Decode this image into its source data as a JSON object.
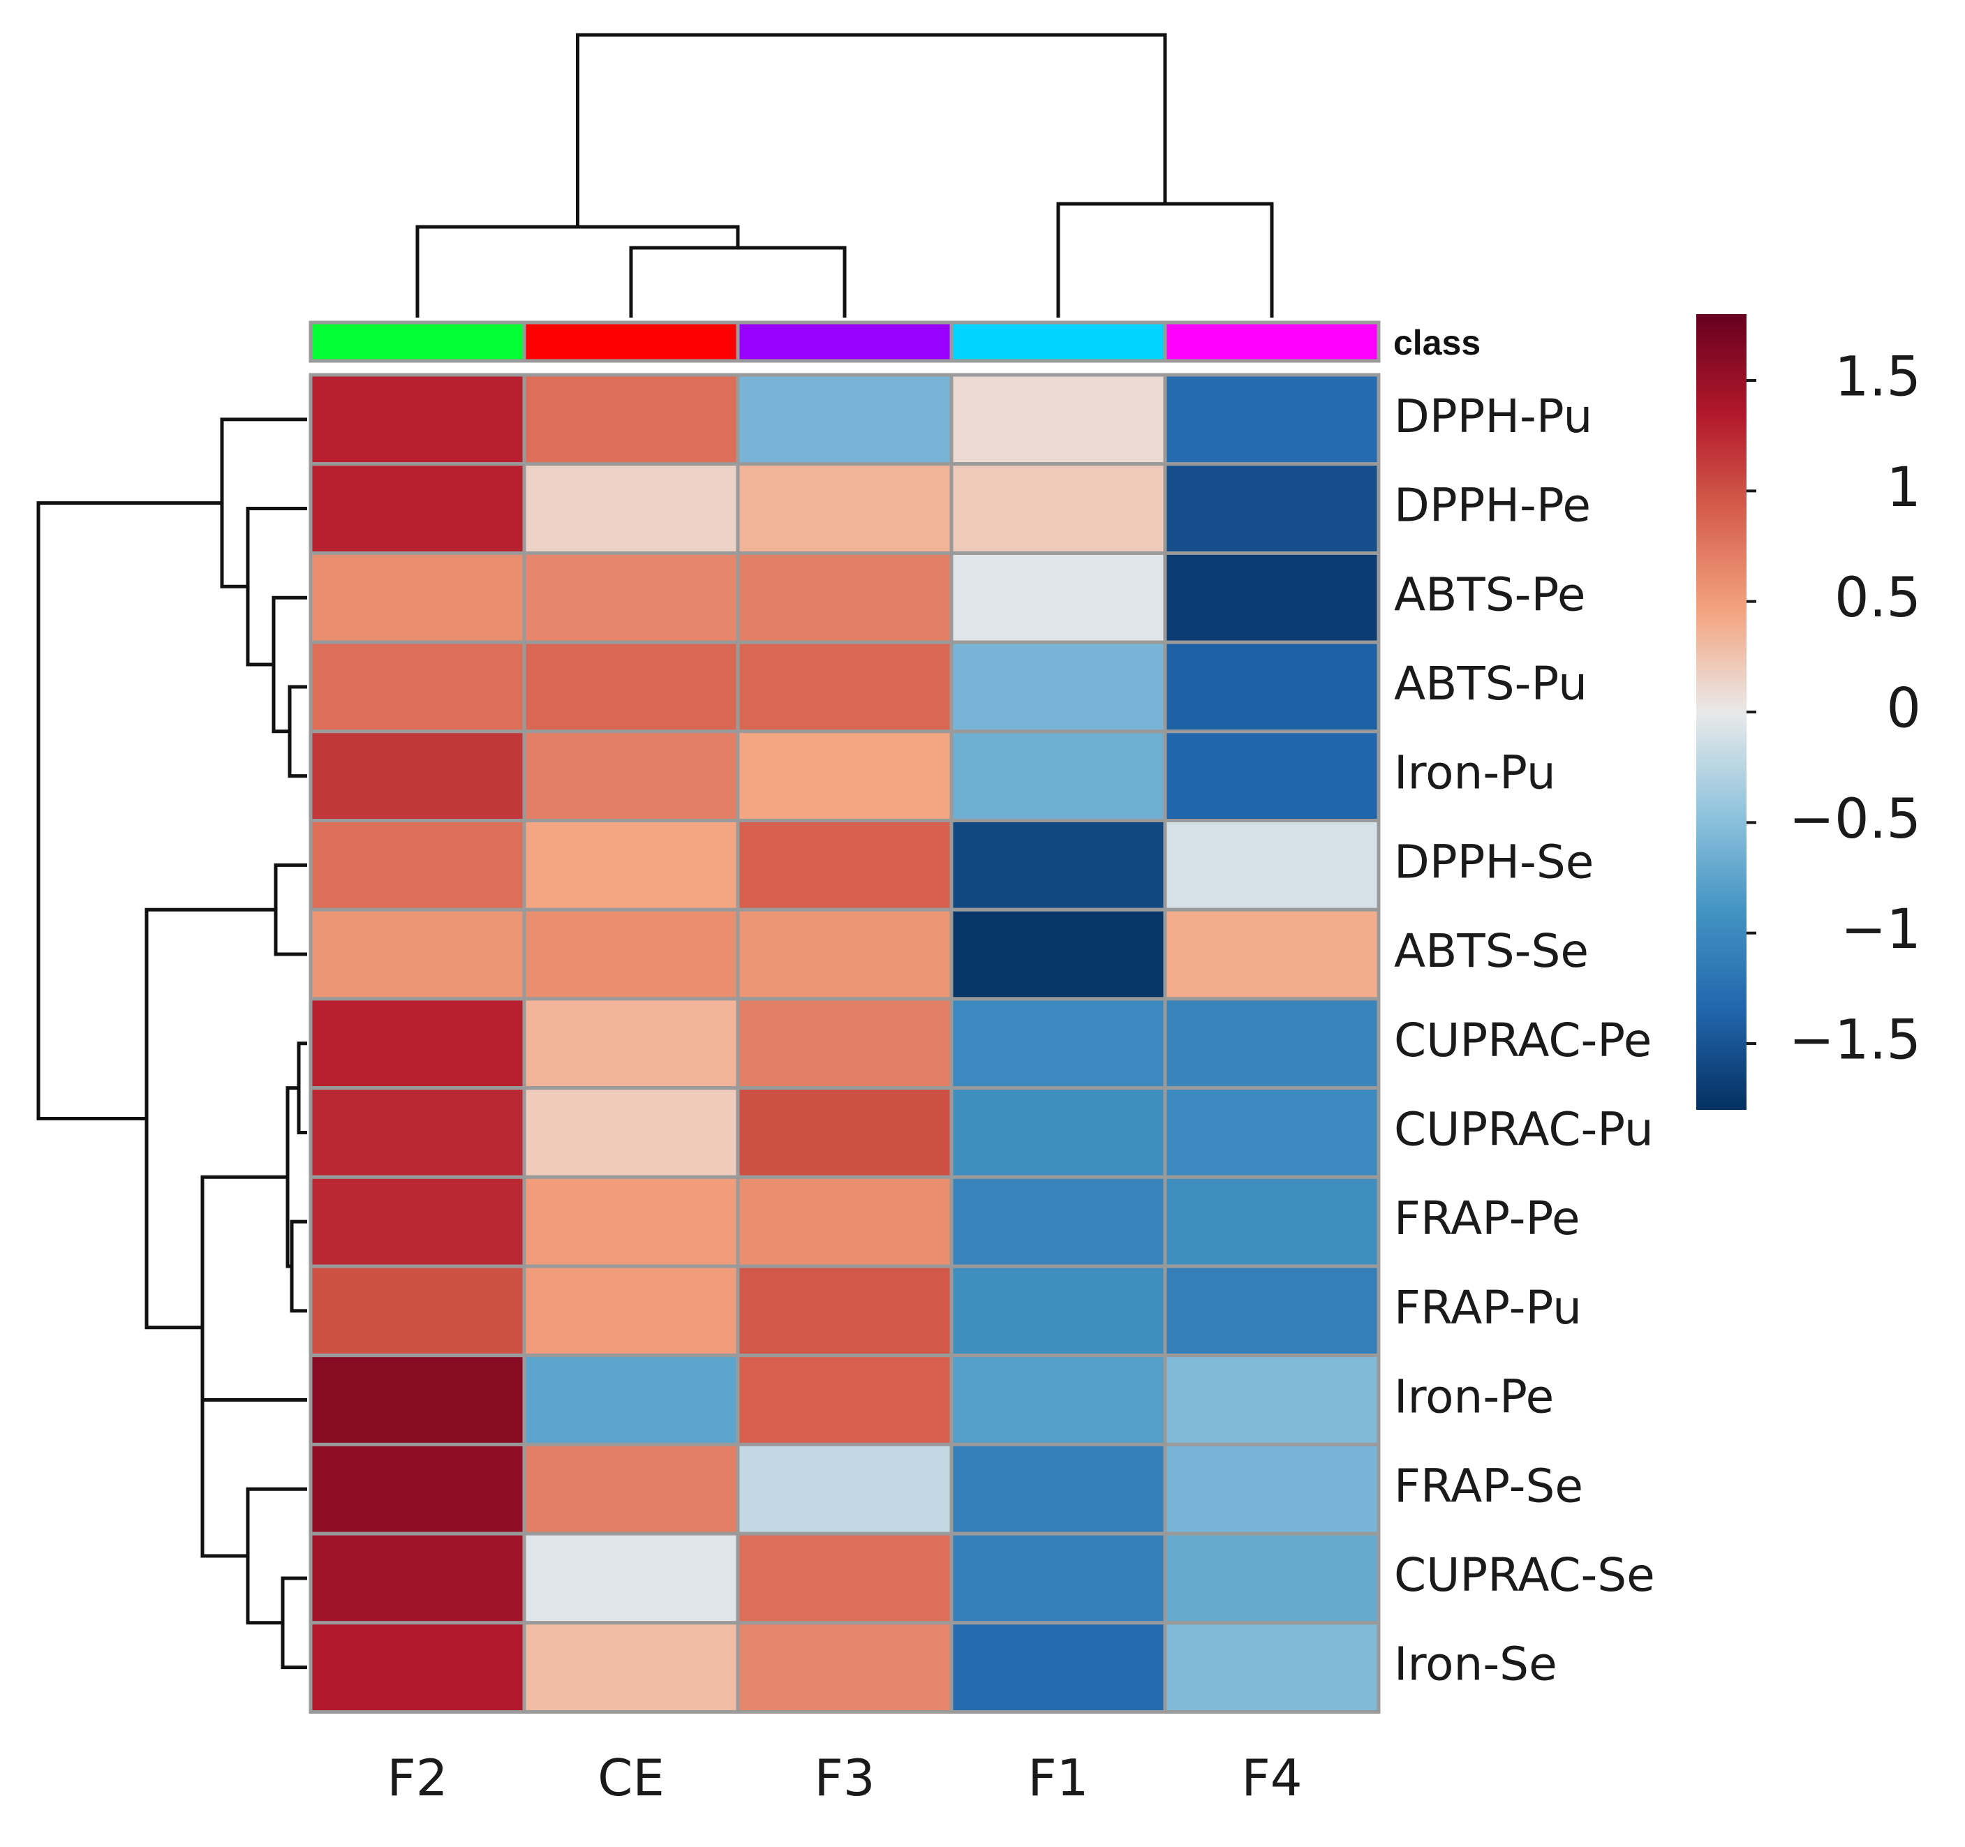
{
  "chart_data": {
    "type": "heatmap",
    "title": "",
    "columns": [
      "F2",
      "CE",
      "F3",
      "F1",
      "F4"
    ],
    "rows": [
      "DPPH-Pu",
      "DPPH-Pe",
      "ABTS-Pe",
      "ABTS-Pu",
      "Iron-Pu",
      "DPPH-Se",
      "ABTS-Se",
      "CUPRAC-Pe",
      "CUPRAC-Pu",
      "FRAP-Pe",
      "FRAP-Pu",
      "Iron-Pe",
      "FRAP-Se",
      "CUPRAC-Se",
      "Iron-Se"
    ],
    "values": [
      [
        1.3,
        0.8,
        -0.6,
        0.1,
        -1.3
      ],
      [
        1.3,
        0.15,
        0.35,
        0.2,
        -1.55
      ],
      [
        0.6,
        0.65,
        0.7,
        -0.05,
        -1.7
      ],
      [
        0.8,
        0.85,
        0.85,
        -0.6,
        -1.4
      ],
      [
        1.15,
        0.7,
        0.45,
        -0.65,
        -1.35
      ],
      [
        0.8,
        0.45,
        0.9,
        -1.6,
        -0.1
      ],
      [
        0.55,
        0.6,
        0.55,
        -1.75,
        0.4
      ],
      [
        1.3,
        0.35,
        0.7,
        -1.0,
        -1.05
      ],
      [
        1.25,
        0.2,
        1.0,
        -0.95,
        -1.0
      ],
      [
        1.25,
        0.5,
        0.6,
        -1.05,
        -0.95
      ],
      [
        1.0,
        0.5,
        0.95,
        -0.95,
        -1.1
      ],
      [
        1.6,
        -0.75,
        0.9,
        -0.8,
        -0.55
      ],
      [
        1.55,
        0.7,
        -0.2,
        -1.1,
        -0.6
      ],
      [
        1.45,
        -0.05,
        0.8,
        -1.1,
        -0.7
      ],
      [
        1.35,
        0.3,
        0.65,
        -1.3,
        -0.55
      ]
    ],
    "class_label": "class",
    "class_colors": [
      "#00ff33",
      "#ff0000",
      "#9900ff",
      "#00d4ff",
      "#ff00ff"
    ],
    "color_scale": {
      "min": -1.8,
      "max": 1.8,
      "ticks": [
        1.5,
        1,
        0.5,
        0,
        -0.5,
        -1,
        -1.5
      ],
      "tick_labels": [
        "1.5",
        "1",
        "0.5",
        "0",
        "−0.5",
        "−1",
        "−1.5"
      ]
    }
  }
}
